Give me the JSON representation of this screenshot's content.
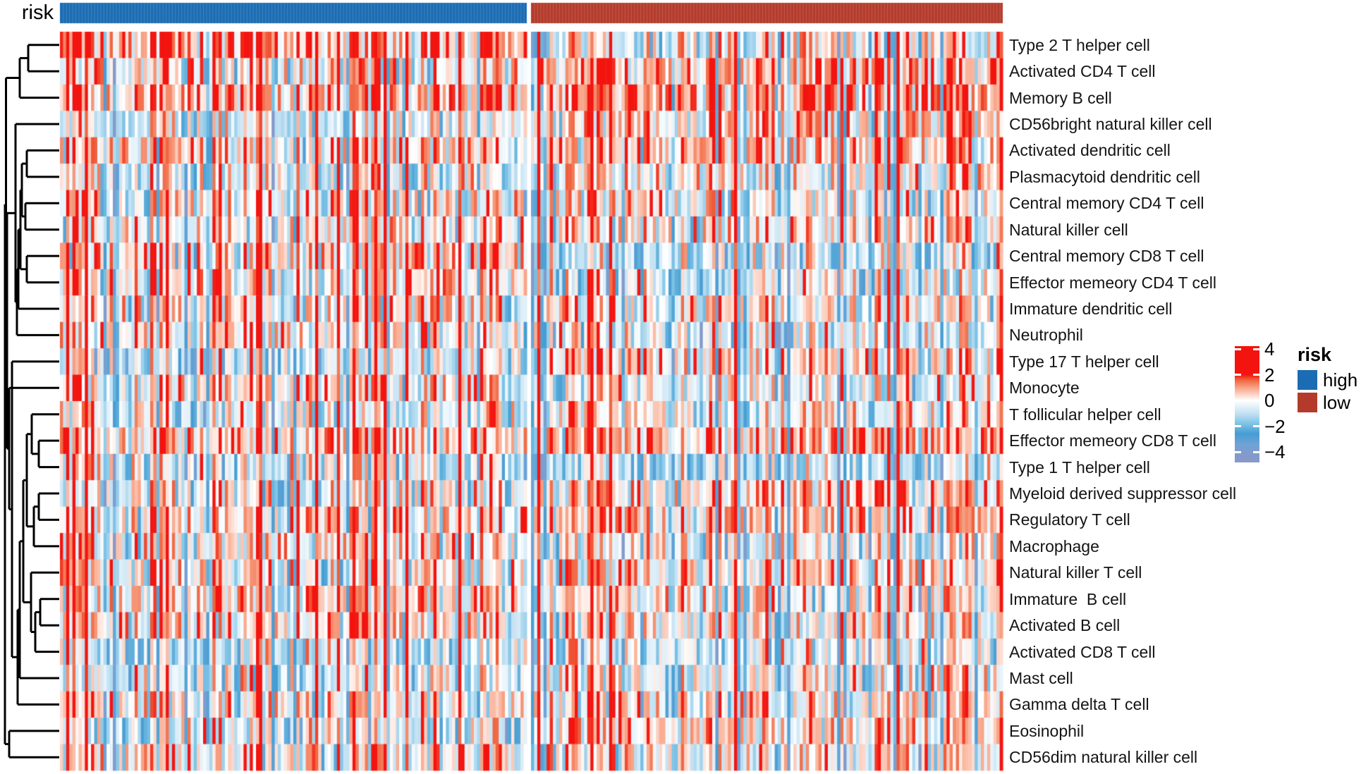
{
  "annotation": {
    "label": "risk",
    "groups": [
      {
        "name": "high",
        "color": "#1B6CB3",
        "n_cols": 150
      },
      {
        "name": "low",
        "color": "#B43B2B",
        "n_cols": 151
      }
    ]
  },
  "legend": {
    "colorbar": {
      "ticks": [
        "4",
        "2",
        "0",
        "−2",
        "−4"
      ],
      "tick_values": [
        4,
        2,
        0,
        -2,
        -4
      ]
    },
    "risk": {
      "title": "risk",
      "items": [
        {
          "label": "high",
          "color": "#1B6CB3"
        },
        {
          "label": "low",
          "color": "#B43B2B"
        }
      ]
    }
  },
  "chart_data": {
    "type": "heatmap",
    "title": "",
    "rows": [
      "Type 2 T helper cell",
      "Activated CD4 T cell",
      "Memory B cell",
      "CD56bright natural killer cell",
      "Activated dendritic cell",
      "Plasmacytoid dendritic cell",
      "Central memory CD4 T cell",
      "Natural killer cell",
      "Central memory CD8 T cell",
      "Effector memeory CD4 T cell",
      "Immature dendritic cell",
      "Neutrophil",
      "Type 17 T helper cell",
      "Monocyte",
      "T follicular helper cell",
      "Effector memeory CD8 T cell",
      "Type 1 T helper cell",
      "Myeloid derived suppressor cell",
      "Regulatory T cell",
      "Macrophage",
      "Natural killer T cell",
      "Immature  B cell",
      "Activated B cell",
      "Activated CD8 T cell",
      "Mast cell",
      "Gamma delta T cell",
      "Eosinophil",
      "CD56dim natural killer cell"
    ],
    "column_groups": [
      {
        "name": "high",
        "color": "#1B6CB3",
        "n_cols": 150
      },
      {
        "name": "low",
        "color": "#B43B2B",
        "n_cols": 151
      }
    ],
    "value_domain": [
      -4,
      4
    ],
    "colorbar_ticks": [
      4,
      2,
      0,
      -2,
      -4
    ],
    "colormap_stops": [
      [
        -4.4,
        "#8699C9"
      ],
      [
        -3.4,
        "#6FA3D6"
      ],
      [
        -2.6,
        "#459DD3"
      ],
      [
        -1.8,
        "#7EC3E6"
      ],
      [
        -1.0,
        "#C4E2F3"
      ],
      [
        0.0,
        "#FFFFFF"
      ],
      [
        0.9,
        "#F9AB90"
      ],
      [
        1.6,
        "#F0633F"
      ],
      [
        2.0,
        "#F3140F"
      ],
      [
        4.4,
        "#F3140F"
      ]
    ],
    "dendrogram": [
      7,
      [
        8.5,
        [
          28,
          [
            40,
            0,
            1
          ],
          2
        ],
        [
          10,
          [
            22,
            3,
            [
              24,
              [
                26,
                [
                  29,
                  [
                    31,
                    [
                      38,
                      4,
                      5
                    ],
                    [
                      36,
                      6,
                      7
                    ]
                  ],
                  [
                    38,
                    8,
                    9
                  ]
                ],
                10
              ],
              11
            ]
          ],
          [
            13,
            13,
            [
              17,
              12,
              [
                25,
                [
                  28,
                  [
                    33,
                    [
                      38,
                      [
                        45,
                        14,
                        [
                          55,
                          15,
                          16
                        ]
                      ],
                      [
                        48,
                        [
                          55,
                          17,
                          18
                        ],
                        19
                      ]
                    ],
                    [
                      44,
                      20,
                      [
                        50,
                        [
                          57,
                          21,
                          22
                        ],
                        23
                      ]
                    ]
                  ],
                  24
                ],
                25
              ]
            ]
          ]
        ]
      ],
      [
        13,
        26,
        27
      ]
    ],
    "render": {
      "seed": 20240117,
      "global_mean": 0.18,
      "col_bias_sd": 1.25,
      "col_bias_weight": 0.8,
      "row_mean_sd": 0.5,
      "cell_noise_sd": 1.0
    }
  }
}
